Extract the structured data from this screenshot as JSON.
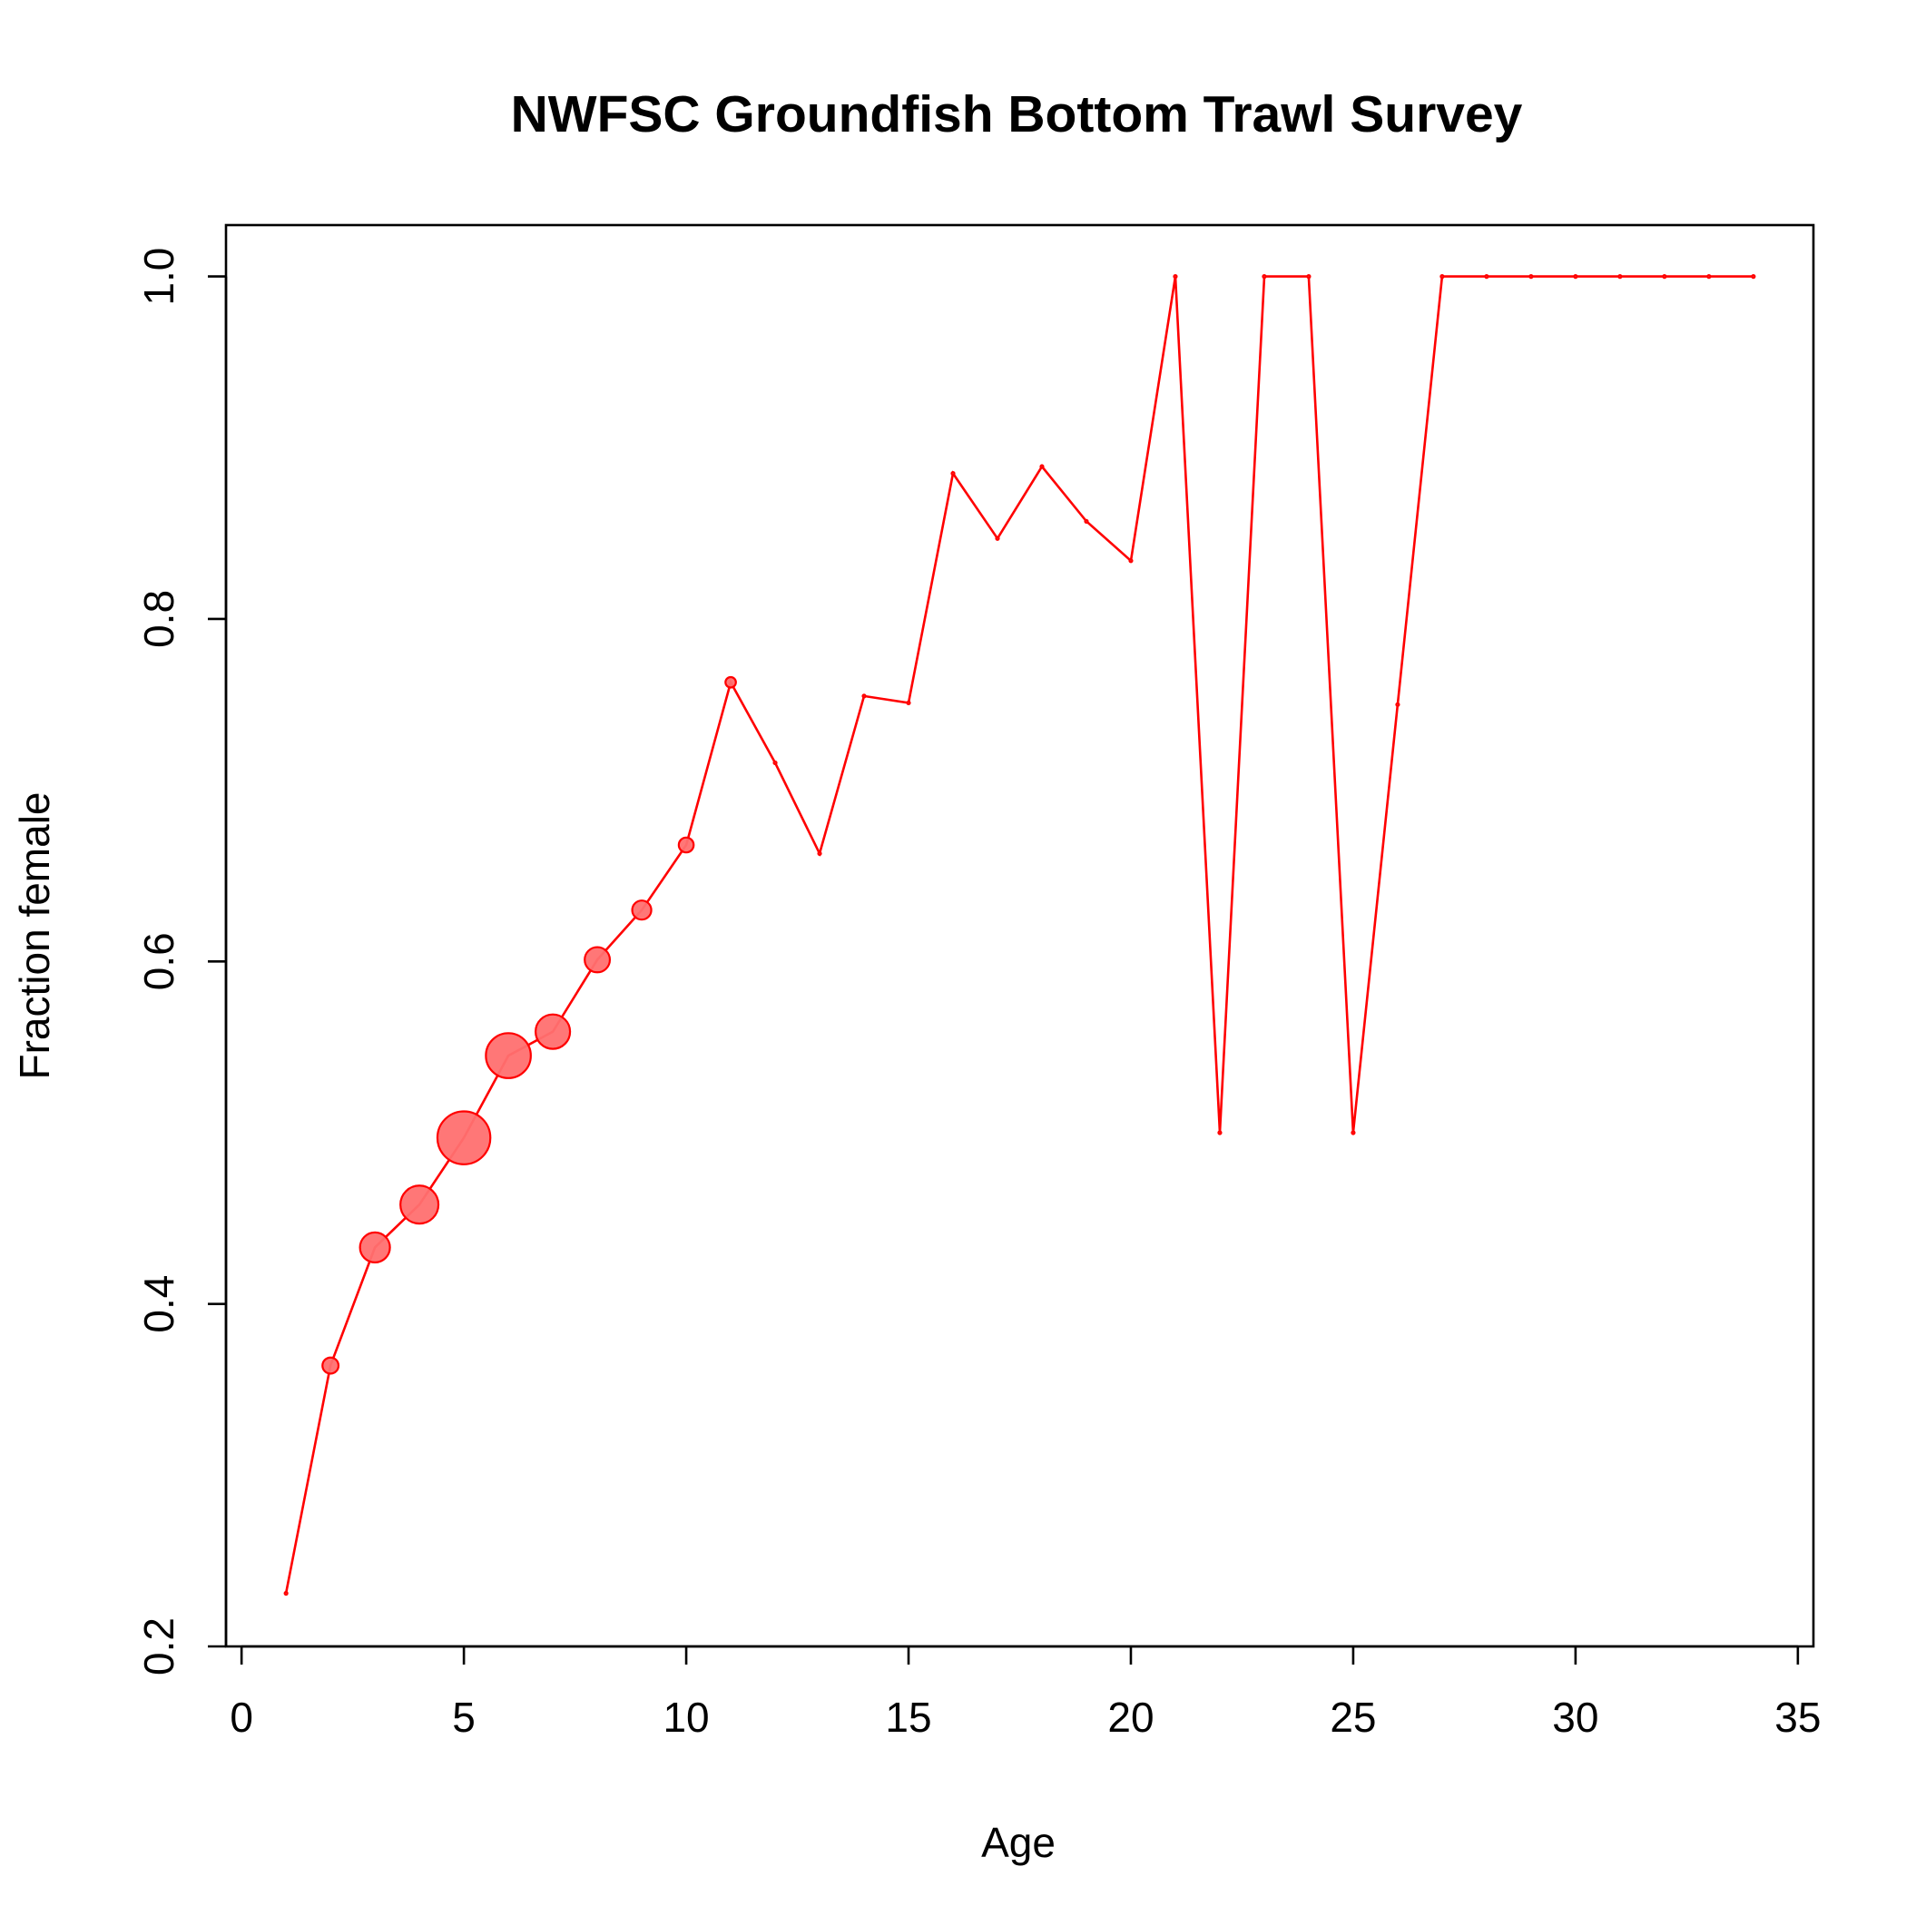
{
  "chart_data": {
    "type": "line",
    "title": "NWFSC Groundfish Bottom Trawl Survey",
    "xlabel": "Age",
    "ylabel": "Fraction female",
    "xlim": [
      -0.35,
      35.35
    ],
    "ylim": [
      0.2,
      1.03
    ],
    "xticks": [
      0,
      5,
      10,
      15,
      20,
      25,
      30,
      35
    ],
    "yticks": [
      0.2,
      0.4,
      0.6,
      0.8,
      1.0
    ],
    "xtick_labels": [
      "0",
      "5",
      "10",
      "15",
      "20",
      "25",
      "30",
      "35"
    ],
    "ytick_labels": [
      "0.2",
      "0.4",
      "0.6",
      "0.8",
      "1.0"
    ],
    "grid": false,
    "series": [
      {
        "color": "#ff0000",
        "marker_fill": "#ff7070",
        "x": [
          1,
          2,
          3,
          4,
          5,
          6,
          7,
          8,
          9,
          10,
          11,
          12,
          13,
          14,
          15,
          16,
          17,
          18,
          19,
          20,
          21,
          22,
          23,
          24,
          25,
          26,
          27,
          28,
          29,
          30,
          31,
          32,
          33,
          34
        ],
        "y": [
          0.231,
          0.364,
          0.433,
          0.458,
          0.497,
          0.545,
          0.559,
          0.601,
          0.63,
          0.668,
          0.763,
          0.716,
          0.663,
          0.755,
          0.751,
          0.885,
          0.847,
          0.889,
          0.857,
          0.834,
          1.0,
          0.5,
          1.0,
          1.0,
          0.5,
          0.75,
          1.0,
          1.0,
          1.0,
          1.0,
          1.0,
          1.0,
          1.0,
          1.0
        ],
        "sample_weight": [
          0.0,
          0.06,
          0.25,
          0.42,
          0.85,
          0.6,
          0.34,
          0.17,
          0.09,
          0.05,
          0.02,
          0.0,
          0.0,
          0.0,
          0.0,
          0.0,
          0.0,
          0.0,
          0.0,
          0.0,
          0.0,
          0.0,
          0.0,
          0.0,
          0.0,
          0.0,
          0.0,
          0.0,
          0.0,
          0.0,
          0.0,
          0.0,
          0.0,
          0.0
        ]
      }
    ]
  }
}
